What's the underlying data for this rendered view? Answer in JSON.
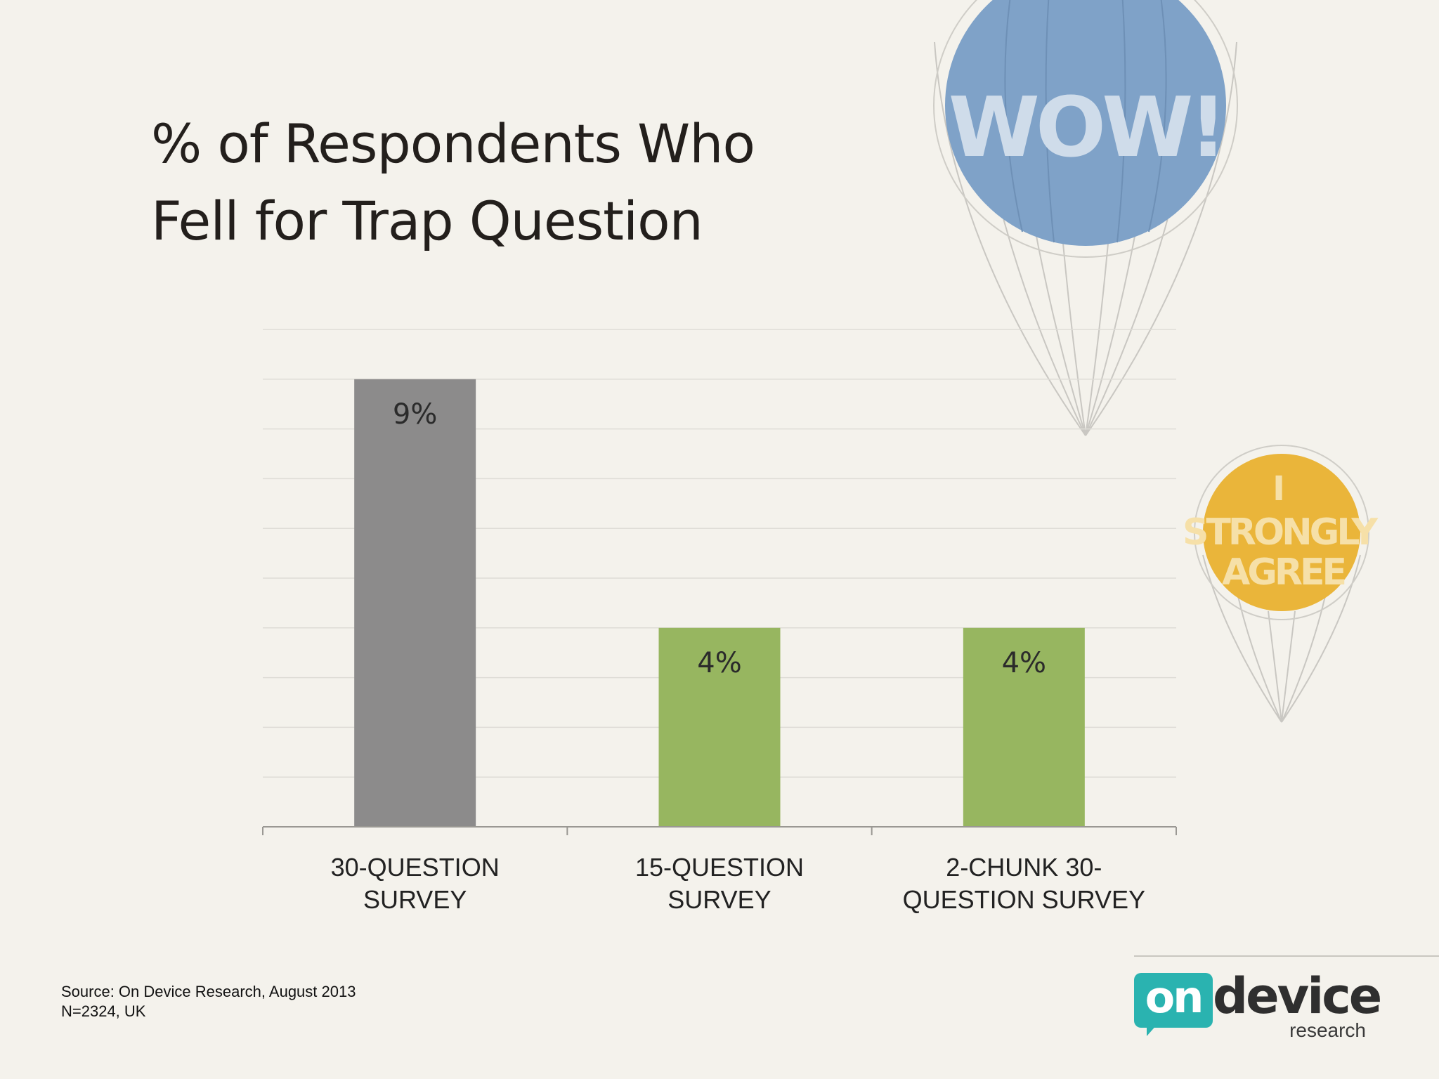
{
  "slide": {
    "title_line1": "% of Respondents Who",
    "title_line2": "Fell for Trap Question",
    "source_line1": "Source: On Device Research, August 2013",
    "source_line2": "N=2324, UK"
  },
  "balloons": {
    "big_text": "WOW!",
    "small_text_1": "I",
    "small_text_2": "STRONGLY",
    "small_text_3": "AGREE",
    "big_color": "#7fa2c8",
    "small_color": "#eab53a"
  },
  "logo": {
    "on": "on",
    "device": "device",
    "research": "research",
    "color": "#2ab3b0"
  },
  "chart_data": {
    "type": "bar",
    "categories": [
      [
        "30-QUESTION",
        "SURVEY"
      ],
      [
        "15-QUESTION",
        "SURVEY"
      ],
      [
        "2-CHUNK 30-",
        "QUESTION SURVEY"
      ]
    ],
    "values": [
      9,
      4,
      4
    ],
    "data_labels": [
      "9%",
      "4%",
      "4%"
    ],
    "colors": [
      "#8c8b8b",
      "#97b660",
      "#97b660"
    ],
    "ylim": [
      0,
      10
    ],
    "grid": true,
    "title": "% of Respondents Who Fell for Trap Question"
  }
}
